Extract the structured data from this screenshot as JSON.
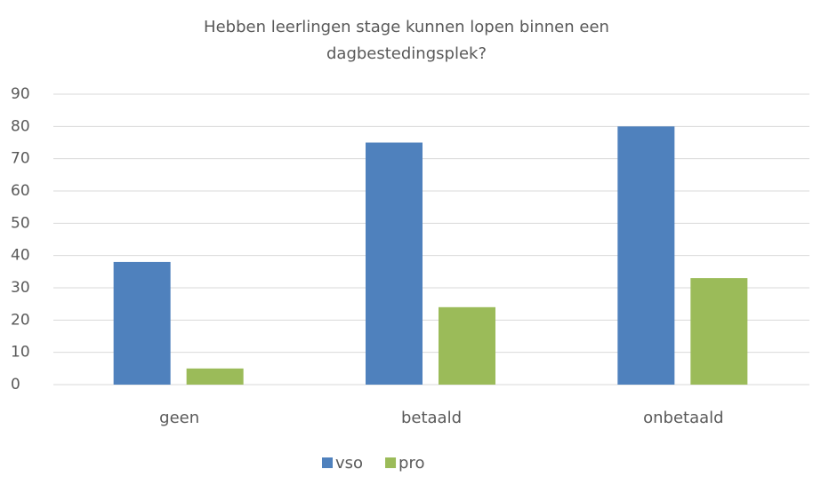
{
  "chart_data": {
    "type": "bar",
    "title": "Hebben leerlingen stage kunnen lopen binnen een dagbestedingsplek?",
    "categories": [
      "geen",
      "betaald",
      "onbetaald"
    ],
    "series": [
      {
        "name": "vso",
        "color": "#4f81bd",
        "values": [
          38,
          75,
          80
        ]
      },
      {
        "name": "pro",
        "color": "#9bbb59",
        "values": [
          5,
          24,
          33
        ]
      }
    ],
    "ylim": [
      0,
      90
    ],
    "yticks": [
      0,
      10,
      20,
      30,
      40,
      50,
      60,
      70,
      80,
      90
    ],
    "grid": true,
    "legend": "bottom"
  }
}
